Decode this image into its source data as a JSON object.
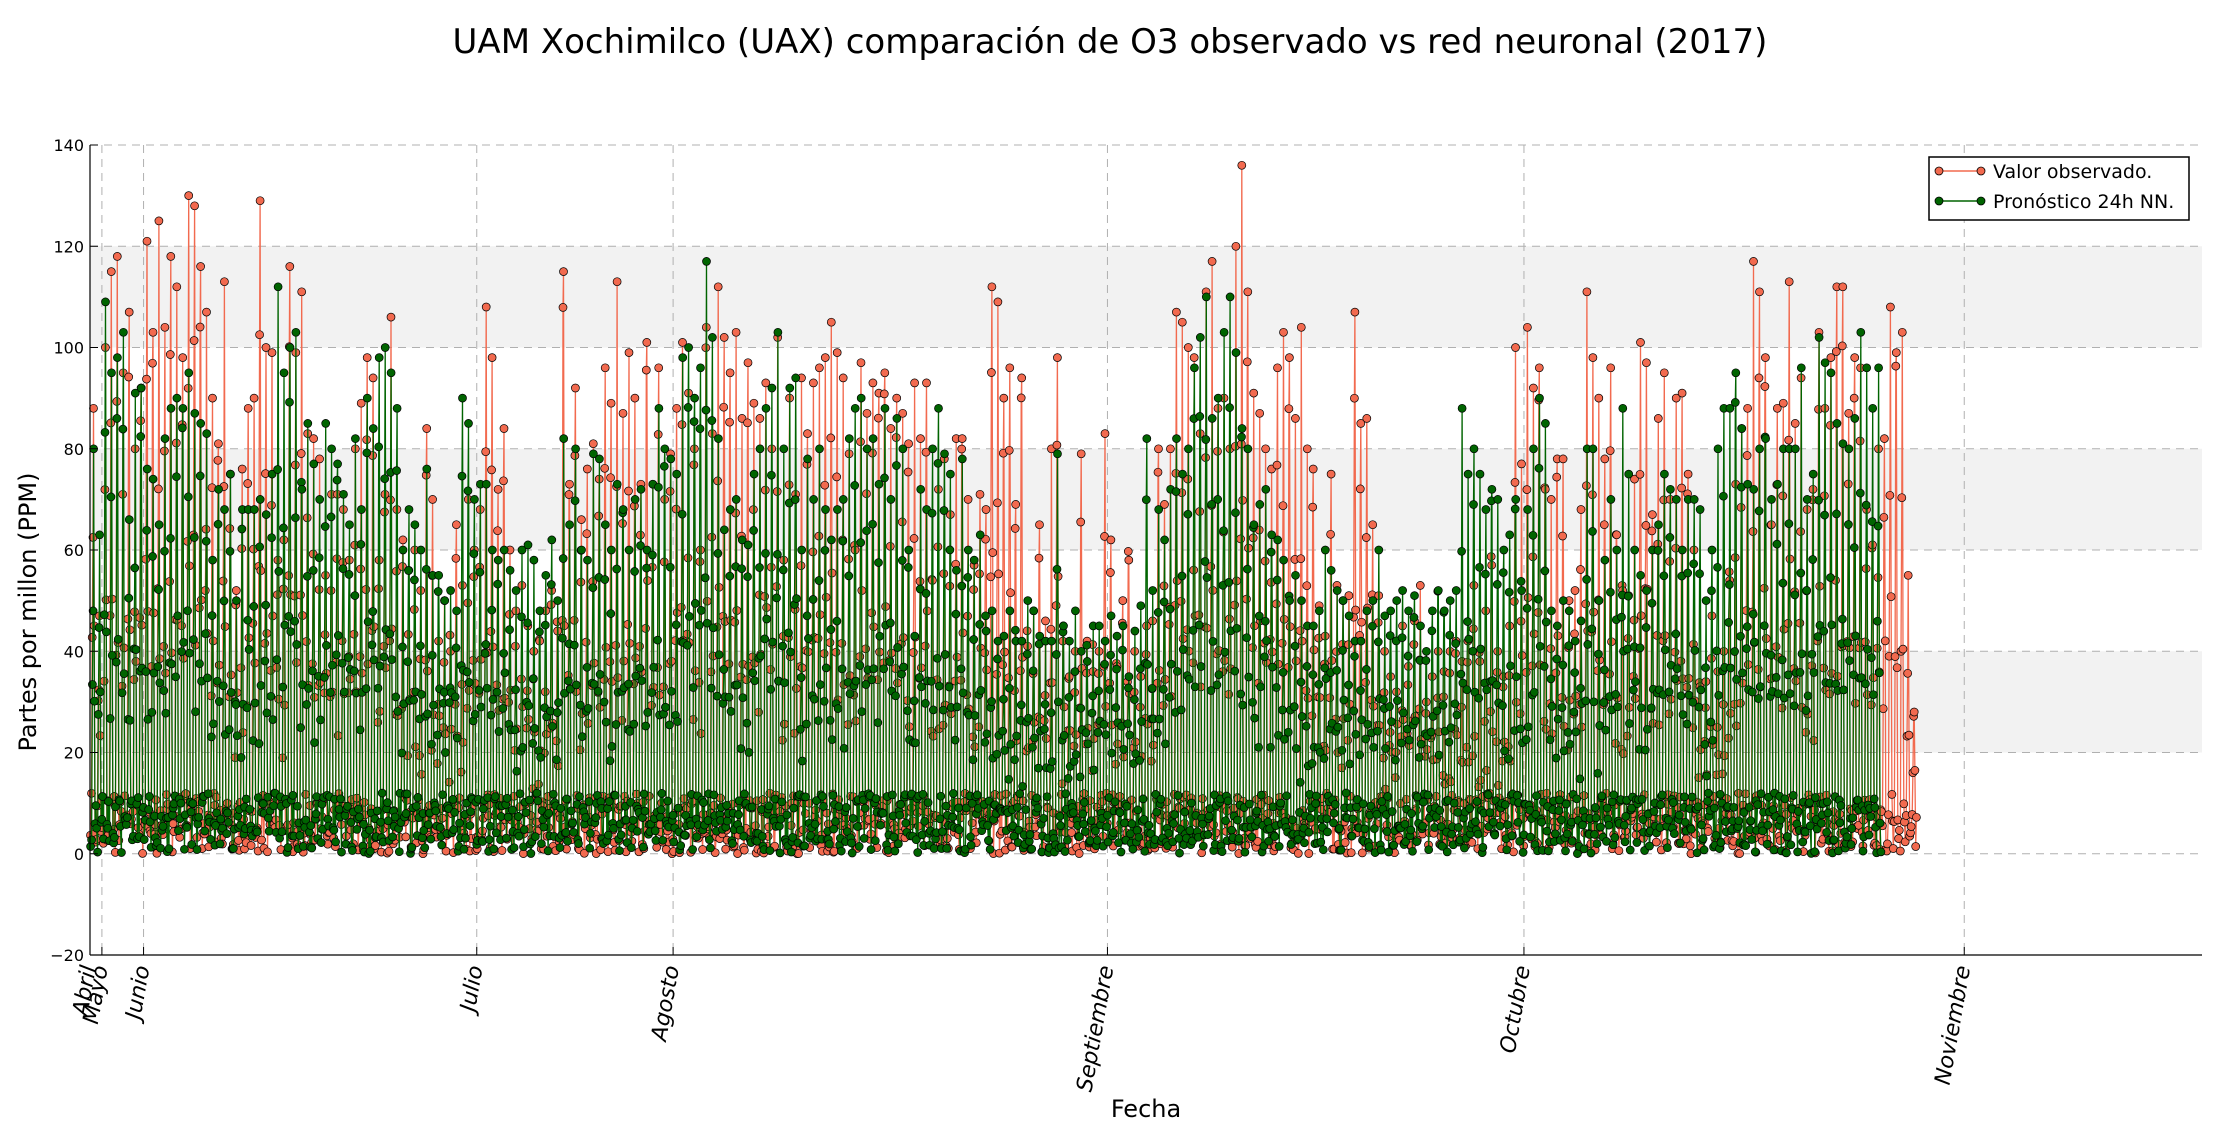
{
  "chart_data": {
    "type": "line",
    "title": "UAM Xochimilco (UAX) comparación de O3 observado vs red neuronal (2017)",
    "xlabel": "Fecha",
    "ylabel": "Partes por millon (PPM)",
    "ylim": [
      -20,
      140
    ],
    "yticks": [
      -20,
      0,
      20,
      40,
      60,
      80,
      100,
      120,
      140
    ],
    "bands": [
      [
        20,
        40
      ],
      [
        60,
        80
      ],
      [
        100,
        120
      ]
    ],
    "xlim_days": [
      0,
      329
    ],
    "month_ticks": [
      {
        "label": "Abril",
        "day": 0
      },
      {
        "label": "Mayo",
        "day": 2
      },
      {
        "label": "Junio",
        "day": 9
      },
      {
        "label": "Julio",
        "day": 65
      },
      {
        "label": "Agosto",
        "day": 98
      },
      {
        "label": "Septiembre",
        "day": 171
      },
      {
        "label": "Octubre",
        "day": 241
      },
      {
        "label": "Noviembre",
        "day": 315
      }
    ],
    "legend_position": "top-right",
    "colors": {
      "observed": "#f26a4f",
      "forecast": "#006400",
      "band": "#f2f2f2"
    },
    "series": [
      {
        "name": "Valor observado.",
        "key": "observed",
        "daily_peaks": [
          88,
          47,
          100,
          115,
          118,
          95,
          107,
          80,
          92,
          121,
          103,
          125,
          104,
          118,
          112,
          98,
          130,
          128,
          116,
          107,
          90,
          81,
          113,
          75,
          52,
          76,
          88,
          90,
          129,
          100,
          99,
          58,
          62,
          116,
          99,
          111,
          83,
          82,
          78,
          55,
          71,
          71,
          68,
          58,
          80,
          89,
          98,
          94,
          58,
          71,
          106,
          68,
          62,
          56,
          60,
          52,
          84,
          70,
          42,
          50,
          40,
          65,
          53,
          70,
          60,
          68,
          108,
          98,
          72,
          84,
          60,
          48,
          53,
          45,
          40,
          42,
          48,
          52,
          44,
          115,
          73,
          92,
          66,
          76,
          81,
          74,
          96,
          89,
          113,
          87,
          99,
          90,
          73,
          101,
          73,
          96,
          70,
          79,
          88,
          101,
          91,
          80,
          60,
          104,
          83,
          112,
          102,
          95,
          103,
          86,
          97,
          89,
          86,
          93,
          80,
          102,
          58,
          90,
          71,
          94,
          83,
          93,
          96,
          98,
          105,
          99,
          94,
          79,
          60,
          97,
          87,
          93,
          91,
          95,
          84,
          90,
          87,
          81,
          93,
          82,
          93,
          54,
          72,
          78,
          67,
          82,
          82,
          70,
          57,
          71,
          68,
          112,
          109,
          90,
          96,
          69,
          94,
          41,
          48,
          65,
          46,
          80,
          98,
          45,
          35,
          40,
          79,
          42,
          36,
          40,
          83,
          62,
          37,
          50,
          58,
          40,
          35,
          45,
          46,
          80,
          69,
          80,
          107,
          105,
          100,
          98,
          83,
          111,
          117,
          88,
          90,
          80,
          120,
          136,
          111,
          91,
          87,
          80,
          76,
          96,
          103,
          98,
          86,
          104,
          80,
          76,
          49,
          43,
          75,
          53,
          50,
          51,
          107,
          85,
          86,
          65,
          51,
          40,
          35,
          32,
          45,
          37,
          46,
          53,
          30,
          35,
          40,
          36,
          40,
          42,
          38,
          42,
          53,
          38,
          48,
          57,
          40,
          35,
          45,
          100,
          77,
          104,
          92,
          96,
          72,
          70,
          78,
          78,
          50,
          52,
          68,
          111,
          98,
          90,
          78,
          96,
          63,
          52,
          51,
          74,
          101,
          97,
          67,
          86,
          95,
          70,
          90,
          91,
          75,
          60,
          33,
          34,
          47,
          36,
          40,
          54,
          73,
          84,
          88,
          117,
          111,
          98,
          65,
          88,
          89,
          113,
          85,
          94,
          68,
          72,
          103,
          88,
          98,
          112,
          112,
          87,
          98,
          96,
          68,
          61,
          80,
          82,
          108,
          99,
          103,
          55,
          28
        ]
      },
      {
        "name": "Pronóstico 24h NN.",
        "key": "forecast",
        "daily_peaks": [
          80,
          63,
          109,
          95,
          98,
          103,
          66,
          91,
          92,
          76,
          74,
          65,
          82,
          88,
          90,
          88,
          95,
          87,
          85,
          83,
          58,
          72,
          68,
          75,
          50,
          68,
          68,
          68,
          70,
          67,
          75,
          112,
          95,
          100,
          103,
          72,
          85,
          77,
          70,
          85,
          80,
          77,
          71,
          65,
          82,
          68,
          90,
          84,
          98,
          100,
          95,
          88,
          60,
          68,
          65,
          60,
          76,
          55,
          55,
          50,
          52,
          48,
          90,
          85,
          70,
          73,
          73,
          60,
          58,
          60,
          56,
          52,
          60,
          61,
          58,
          48,
          55,
          62,
          50,
          82,
          65,
          80,
          60,
          58,
          79,
          78,
          65,
          60,
          73,
          68,
          60,
          70,
          72,
          60,
          73,
          88,
          80,
          78,
          75,
          98,
          100,
          90,
          96,
          117,
          102,
          82,
          64,
          68,
          70,
          62,
          61,
          75,
          80,
          88,
          92,
          103,
          80,
          92,
          94,
          60,
          78,
          70,
          80,
          68,
          62,
          68,
          70,
          82,
          88,
          90,
          80,
          82,
          73,
          88,
          70,
          86,
          80,
          60,
          43,
          72,
          68,
          80,
          88,
          79,
          75,
          56,
          78,
          60,
          58,
          63,
          44,
          48,
          42,
          43,
          48,
          42,
          42,
          50,
          48,
          43,
          42,
          42,
          79,
          45,
          42,
          48,
          40,
          38,
          45,
          45,
          42,
          47,
          43,
          45,
          35,
          44,
          49,
          82,
          52,
          68,
          62,
          72,
          82,
          75,
          80,
          96,
          102,
          110,
          86,
          90,
          103,
          110,
          99,
          84,
          80,
          65,
          69,
          72,
          63,
          62,
          58,
          50,
          55,
          50,
          45,
          45,
          48,
          60,
          56,
          52,
          50,
          47,
          42,
          42,
          48,
          50,
          60,
          47,
          48,
          50,
          52,
          48,
          51,
          45,
          40,
          48,
          52,
          48,
          50,
          52,
          88,
          75,
          80,
          75,
          68,
          72,
          70,
          60,
          63,
          70,
          52,
          68,
          80,
          90,
          85,
          48,
          45,
          50,
          48,
          42,
          46,
          80,
          80,
          50,
          58,
          70,
          60,
          88,
          75,
          60,
          55,
          52,
          60,
          65,
          75,
          72,
          70,
          60,
          70,
          70,
          68,
          50,
          60,
          80,
          88,
          88,
          95,
          84,
          73,
          72,
          80,
          82,
          70,
          73,
          80,
          80,
          80,
          96,
          70,
          75,
          102,
          97,
          95,
          85,
          81,
          80,
          86,
          103,
          96,
          88,
          96
        ]
      }
    ]
  }
}
